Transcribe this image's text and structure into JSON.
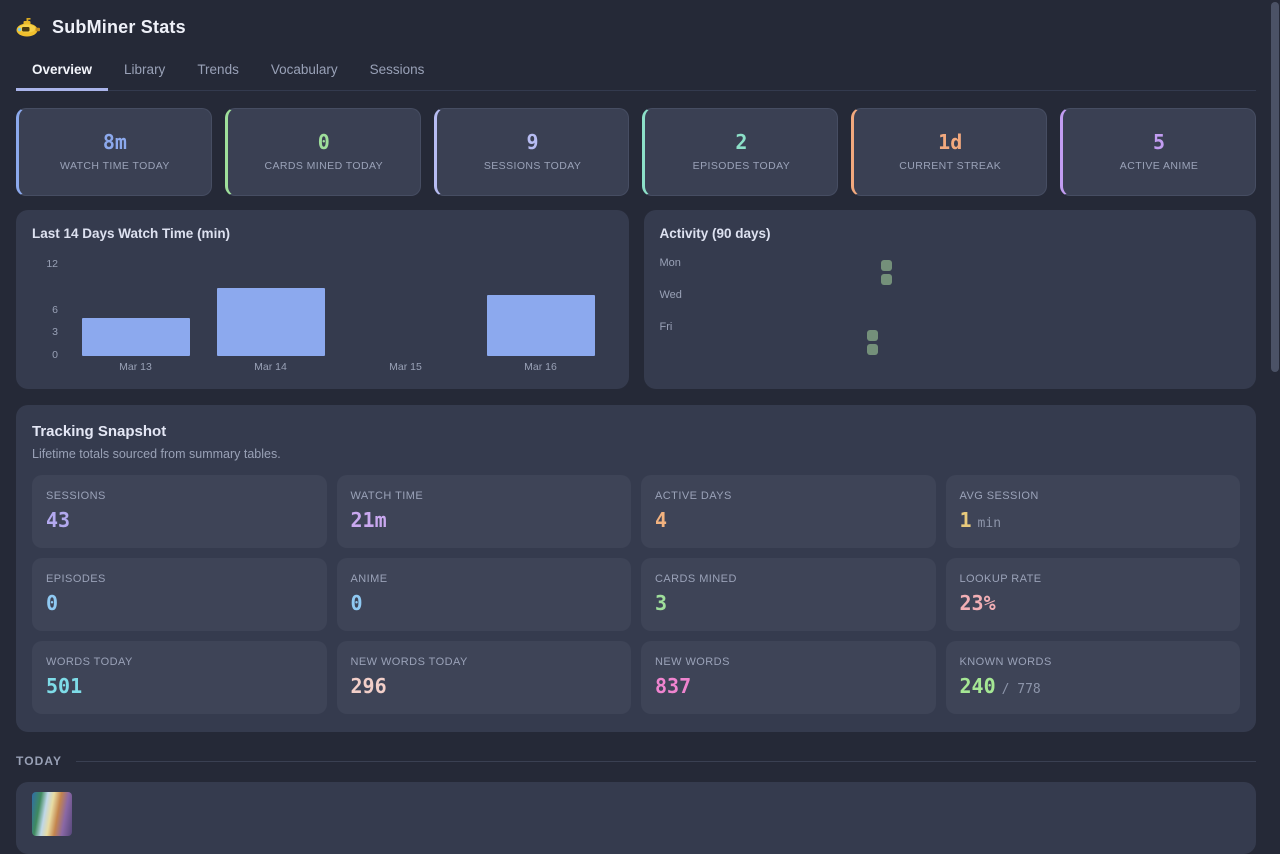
{
  "header": {
    "title": "SubMiner Stats"
  },
  "tabs": [
    {
      "label": "Overview",
      "active": true
    },
    {
      "label": "Library",
      "active": false
    },
    {
      "label": "Trends",
      "active": false
    },
    {
      "label": "Vocabulary",
      "active": false
    },
    {
      "label": "Sessions",
      "active": false
    }
  ],
  "stat_cards": [
    {
      "value": "8m",
      "label": "WATCH TIME TODAY",
      "color": "#8ca9ed"
    },
    {
      "value": "0",
      "label": "CARDS MINED TODAY",
      "color": "#9fdf9b"
    },
    {
      "value": "9",
      "label": "SESSIONS TODAY",
      "color": "#b7bcf2"
    },
    {
      "value": "2",
      "label": "EPISODES TODAY",
      "color": "#8ce0c8"
    },
    {
      "value": "1d",
      "label": "CURRENT STREAK",
      "color": "#f2a97e"
    },
    {
      "value": "5",
      "label": "ACTIVE ANIME",
      "color": "#c29df2"
    }
  ],
  "chart_data": [
    {
      "type": "bar",
      "title": "Last 14 Days Watch Time (min)",
      "categories": [
        "Mar 13",
        "Mar 14",
        "Mar 15",
        "Mar 16"
      ],
      "values": [
        5,
        9,
        0,
        8
      ],
      "xlabel": "",
      "ylabel": "",
      "ylim": [
        0,
        12
      ],
      "yticks": [
        0,
        3,
        6,
        12
      ],
      "grid": false,
      "legend": "none",
      "bar_color": "#8ca9ee"
    },
    {
      "type": "heatmap",
      "title": "Activity (90 days)",
      "rows": 7,
      "cols": 13,
      "row_labels": [
        {
          "label": "Mon",
          "row": 0
        },
        {
          "label": "Wed",
          "row": 2
        },
        {
          "label": "Fri",
          "row": 4
        }
      ],
      "active_cells": [
        {
          "col": 11,
          "row": 5
        },
        {
          "col": 11,
          "row": 6
        },
        {
          "col": 12,
          "row": 0
        },
        {
          "col": 12,
          "row": 1
        }
      ],
      "cell_color": "#74907a"
    }
  ],
  "snapshot": {
    "title": "Tracking Snapshot",
    "subtitle": "Lifetime totals sourced from summary tables.",
    "tiles": [
      {
        "label": "SESSIONS",
        "value": "43",
        "suffix": "",
        "color": "#b3a9ef"
      },
      {
        "label": "WATCH TIME",
        "value": "21m",
        "suffix": "",
        "color": "#c9a8ef"
      },
      {
        "label": "ACTIVE DAYS",
        "value": "4",
        "suffix": "",
        "color": "#f2b27f"
      },
      {
        "label": "AVG SESSION",
        "value": "1",
        "suffix": "min",
        "color": "#e8ca7c"
      },
      {
        "label": "EPISODES",
        "value": "0",
        "suffix": "",
        "color": "#8fc9f2"
      },
      {
        "label": "ANIME",
        "value": "0",
        "suffix": "",
        "color": "#8fc9f2"
      },
      {
        "label": "CARDS MINED",
        "value": "3",
        "suffix": "",
        "color": "#9fdf9b"
      },
      {
        "label": "LOOKUP RATE",
        "value": "23%",
        "suffix": "",
        "color": "#f2afb5"
      },
      {
        "label": "WORDS TODAY",
        "value": "501",
        "suffix": "",
        "color": "#7edce8"
      },
      {
        "label": "NEW WORDS TODAY",
        "value": "296",
        "suffix": "",
        "color": "#f2cfc9"
      },
      {
        "label": "NEW WORDS",
        "value": "837",
        "suffix": "",
        "color": "#ef84cf"
      },
      {
        "label": "KNOWN WORDS",
        "value": "240",
        "suffix": "/ 778",
        "color": "#a5e794"
      }
    ]
  },
  "today": {
    "label": "TODAY"
  }
}
